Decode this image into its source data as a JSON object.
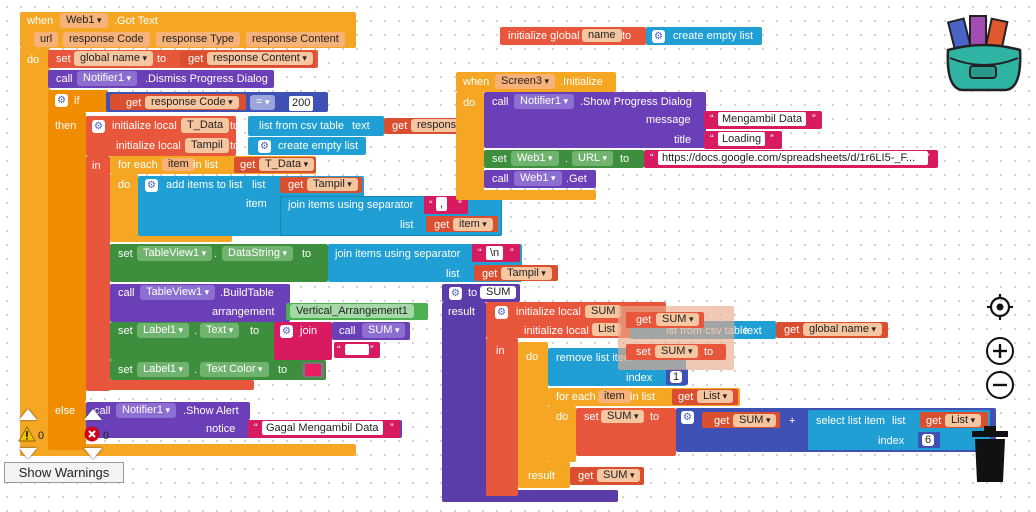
{
  "got_text_block": {
    "when": "when",
    "component": "Web1",
    "event": ".Got Text",
    "params": [
      "url",
      "response Code",
      "response Type",
      "response Content"
    ],
    "do": "do",
    "set_label": "set",
    "global_name": "global name",
    "to": "to",
    "get": "get",
    "response_content": "response Content",
    "call": "call",
    "notifier": "Notifier1",
    "dismiss": ".Dismiss Progress Dialog",
    "if": "if",
    "response_code": "response Code",
    "eq": "=",
    "code_200": "200",
    "then": "then",
    "init_local": "initialize local",
    "t_data": "T_Data",
    "list_from_csv": "list from csv table",
    "text": "text",
    "tampil": "Tampil",
    "create_empty_list": "create empty list",
    "in": "in",
    "for_each": "for each",
    "item": "item",
    "in_list": "in list",
    "add_items": "add items to list",
    "list": "list",
    "join_items": "join items using separator",
    "sep_comma": ",",
    "tableview": "TableView1",
    "datastring": "DataString",
    "sep_newline": "\\n",
    "build_table": ".BuildTable",
    "arrangement": "arrangement",
    "vert_arr": "Vertical_Arrangement1",
    "label1": "Label1",
    "text_prop": "Text",
    "join": "join",
    "sum": "SUM",
    "text_color": "Text Color",
    "else": "else",
    "show_alert": ".Show Alert",
    "notice": "notice",
    "gagal": "Gagal Mengambil Data"
  },
  "global_init": {
    "label": "initialize global",
    "name": "name",
    "to": "to",
    "value": "create empty list"
  },
  "screen_init": {
    "when": "when",
    "screen": "Screen3",
    "event": ".Initialize",
    "do": "do",
    "call": "call",
    "notifier": "Notifier1",
    "method": ".Show Progress Dialog",
    "message_label": "message",
    "message": "Mengambil Data",
    "title_label": "title",
    "title": "Loading",
    "set": "set",
    "web": "Web1",
    "url_prop": "URL",
    "to": "to",
    "url_value": "https://docs.google.com/spreadsheets/d/1r6LI5-_F...",
    "get_method": ".Get"
  },
  "sum_proc": {
    "to": "to",
    "name": "SUM",
    "result": "result",
    "init_local": "initialize local",
    "sum": "SUM",
    "list_var": "List",
    "list_from_csv": "ist from csv table",
    "text": "text",
    "get": "get",
    "global_name": "global name",
    "in": "in",
    "do": "do",
    "remove_item": "remove list item",
    "index": "index",
    "index_1": "1",
    "for_each": "for each",
    "item": "item",
    "in_list": "in list",
    "set": "set",
    "plus": "+",
    "select_item": "select list item",
    "list": "list",
    "index_6": "6",
    "ghost_get": "get",
    "ghost_set": "set",
    "ghost_to": "to"
  },
  "warnings": {
    "warn_count": "0",
    "error_count": "0",
    "show_warnings": "Show Warnings"
  },
  "colors": {
    "event": "#f5a623",
    "variable": "#e8563b",
    "procedure": "#6b3fb8",
    "list": "#1f9fd4",
    "component_set": "#3d8f3d",
    "text": "#d81b60"
  },
  "icons": [
    "backpack-icon",
    "target-icon",
    "zoom-in-icon",
    "zoom-out-icon",
    "trash-icon",
    "warning-icon",
    "error-icon",
    "gear-icon"
  ]
}
